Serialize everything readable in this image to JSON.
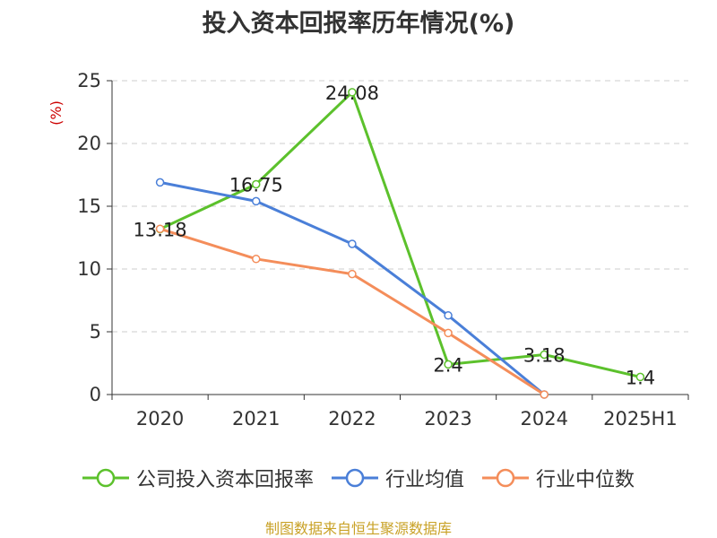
{
  "chart_data": {
    "type": "line",
    "title": "投入资本回报率历年情况(%)",
    "ylabel": "(%)",
    "categories": [
      "2020",
      "2021",
      "2022",
      "2023",
      "2024",
      "2025H1"
    ],
    "ylim": [
      0,
      25
    ],
    "yticks": [
      "0",
      "5",
      "10",
      "15",
      "20",
      "25"
    ],
    "grid": true,
    "legend_position": "bottom",
    "series": [
      {
        "name": "公司投入资本回报率",
        "color": "#5cc12c",
        "values": [
          13.18,
          16.75,
          24.08,
          2.4,
          3.18,
          1.4
        ],
        "labels": [
          "13.18",
          "16.75",
          "24.08",
          "2.4",
          "3.18",
          "1.4"
        ]
      },
      {
        "name": "行业均值",
        "color": "#4a7fd8",
        "values": [
          16.9,
          15.4,
          12.0,
          6.3,
          0.0,
          null
        ]
      },
      {
        "name": "行业中位数",
        "color": "#f48d5a",
        "values": [
          13.2,
          10.8,
          9.6,
          4.9,
          0.0,
          null
        ]
      }
    ]
  },
  "source": {
    "text": "制图数据来自恒生聚源数据库",
    "color": "#c9a227"
  },
  "colors": {
    "axis": "#333333",
    "grid": "#cccccc",
    "unit_label": "#cc0000"
  }
}
